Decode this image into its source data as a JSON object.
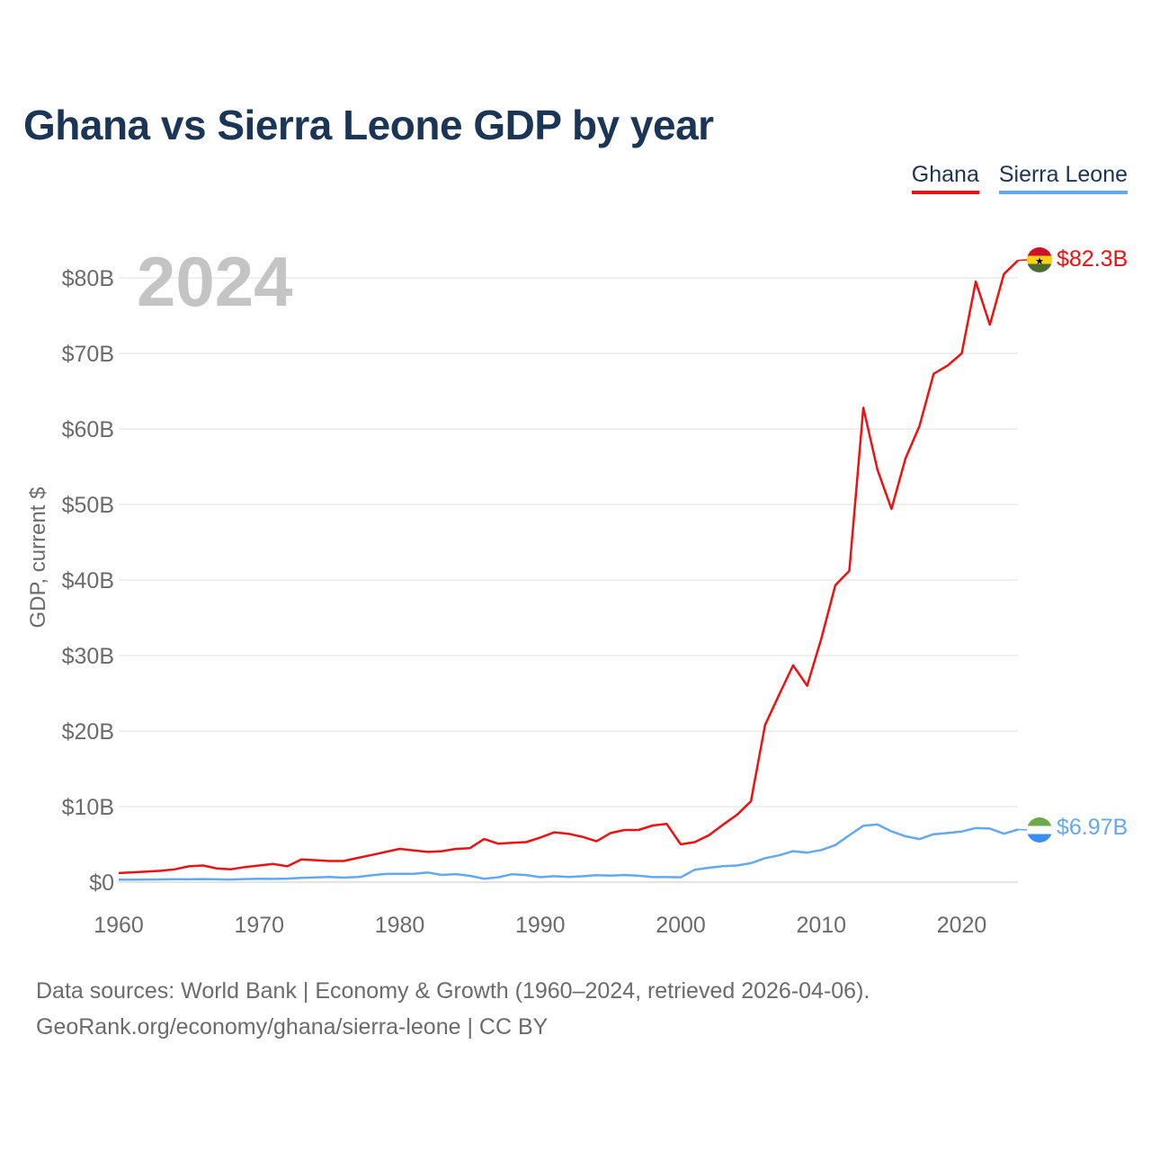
{
  "title": "Ghana vs Sierra Leone GDP by year",
  "year_label": "2024",
  "legend": [
    {
      "name": "Ghana",
      "color": "#ee1111"
    },
    {
      "name": "Sierra Leone",
      "color": "#64a8ee"
    }
  ],
  "source": {
    "line1": "Data sources: World Bank | Economy & Growth (1960–2024, retrieved 2026-04-06).",
    "line2": "GeoRank.org/economy/ghana/sierra-leone | CC BY"
  },
  "chart_data": {
    "type": "line",
    "title": "Ghana vs Sierra Leone GDP by year",
    "xlabel": "",
    "ylabel": "GDP, current $",
    "x": [
      1960,
      1961,
      1962,
      1963,
      1964,
      1965,
      1966,
      1967,
      1968,
      1969,
      1970,
      1971,
      1972,
      1973,
      1974,
      1975,
      1976,
      1977,
      1978,
      1979,
      1980,
      1981,
      1982,
      1983,
      1984,
      1985,
      1986,
      1987,
      1988,
      1989,
      1990,
      1991,
      1992,
      1993,
      1994,
      1995,
      1996,
      1997,
      1998,
      1999,
      2000,
      2001,
      2002,
      2003,
      2004,
      2005,
      2006,
      2007,
      2008,
      2009,
      2010,
      2011,
      2012,
      2013,
      2014,
      2015,
      2016,
      2017,
      2018,
      2019,
      2020,
      2021,
      2022,
      2023,
      2024
    ],
    "xlim": [
      1960,
      2024
    ],
    "ylim": [
      0,
      85
    ],
    "x_ticks": [
      1960,
      1970,
      1980,
      1990,
      2000,
      2010,
      2020
    ],
    "x_tick_labels": [
      "1960",
      "1970",
      "1980",
      "1990",
      "2000",
      "2010",
      "2020"
    ],
    "y_ticks": [
      0,
      10,
      20,
      30,
      40,
      50,
      60,
      70,
      80
    ],
    "y_tick_labels": [
      "$0",
      "$10B",
      "$20B",
      "$30B",
      "$40B",
      "$50B",
      "$60B",
      "$70B",
      "$80B"
    ],
    "grid": true,
    "series": [
      {
        "name": "Ghana",
        "color": "#ee1111",
        "end_label": "$82.3B",
        "values": [
          1.2,
          1.3,
          1.4,
          1.5,
          1.7,
          2.1,
          2.2,
          1.8,
          1.7,
          2.0,
          2.2,
          2.4,
          2.1,
          3.0,
          2.9,
          2.8,
          2.8,
          3.2,
          3.6,
          4.0,
          4.4,
          4.2,
          4.0,
          4.1,
          4.4,
          4.5,
          5.7,
          5.1,
          5.2,
          5.3,
          5.9,
          6.6,
          6.4,
          6.0,
          5.4,
          6.5,
          6.9,
          6.9,
          7.5,
          7.7,
          5.0,
          5.3,
          6.2,
          7.6,
          8.9,
          10.7,
          20.8,
          24.8,
          28.7,
          26.0,
          32.2,
          39.3,
          41.2,
          62.8,
          54.6,
          49.4,
          56.1,
          60.4,
          67.3,
          68.4,
          70.0,
          79.5,
          73.8,
          80.5,
          82.3
        ]
      },
      {
        "name": "Sierra Leone",
        "color": "#64a8ee",
        "end_label": "$6.97B",
        "values": [
          0.32,
          0.33,
          0.35,
          0.36,
          0.38,
          0.37,
          0.4,
          0.37,
          0.35,
          0.41,
          0.45,
          0.43,
          0.46,
          0.56,
          0.63,
          0.68,
          0.6,
          0.68,
          0.9,
          1.08,
          1.1,
          1.1,
          1.27,
          0.95,
          1.06,
          0.83,
          0.45,
          0.64,
          1.05,
          0.94,
          0.65,
          0.78,
          0.68,
          0.77,
          0.93,
          0.87,
          0.94,
          0.85,
          0.67,
          0.67,
          0.64,
          1.64,
          1.91,
          2.12,
          2.2,
          2.51,
          3.18,
          3.55,
          4.1,
          3.9,
          4.25,
          4.9,
          6.2,
          7.47,
          7.63,
          6.71,
          6.07,
          5.7,
          6.35,
          6.5,
          6.7,
          7.16,
          7.1,
          6.4,
          6.97
        ]
      }
    ]
  }
}
